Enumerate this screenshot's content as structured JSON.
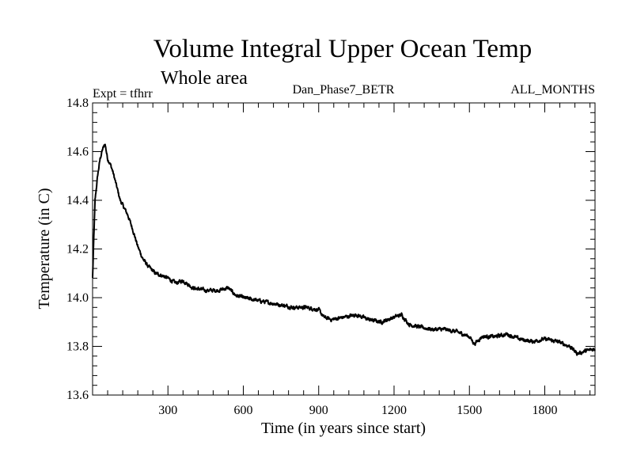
{
  "chart_data": {
    "type": "line",
    "title": "Volume Integral Upper Ocean Temp",
    "subtitle": "Whole area",
    "expt_label": "Expt = tfhrr",
    "run_label": "Dan_Phase7_BETR",
    "period_label": "ALL_MONTHS",
    "xlabel": "Time (in years since start)",
    "ylabel": "Temperature (in C)",
    "xlim": [
      0,
      2000
    ],
    "ylim": [
      13.6,
      14.8
    ],
    "xticks": [
      {
        "value": 300,
        "label": "300"
      },
      {
        "value": 600,
        "label": "600"
      },
      {
        "value": 900,
        "label": "900"
      },
      {
        "value": 1200,
        "label": "1200"
      },
      {
        "value": 1500,
        "label": "1500"
      },
      {
        "value": 1800,
        "label": "1800"
      }
    ],
    "yticks": [
      {
        "value": 13.6,
        "label": "13.6"
      },
      {
        "value": 13.8,
        "label": "13.8"
      },
      {
        "value": 14.0,
        "label": "14.0"
      },
      {
        "value": 14.2,
        "label": "14.2"
      },
      {
        "value": 14.4,
        "label": "14.4"
      },
      {
        "value": 14.6,
        "label": "14.6"
      },
      {
        "value": 14.8,
        "label": "14.8"
      }
    ],
    "grid": false,
    "series": [
      {
        "name": "Volume Integral Upper Ocean Temp",
        "x": [
          0,
          5,
          10,
          20,
          30,
          40,
          50,
          55,
          60,
          70,
          80,
          90,
          100,
          110,
          120,
          130,
          140,
          160,
          180,
          200,
          220,
          250,
          280,
          300,
          330,
          360,
          400,
          450,
          500,
          540,
          570,
          600,
          650,
          700,
          750,
          800,
          850,
          900,
          920,
          950,
          1000,
          1050,
          1100,
          1150,
          1200,
          1230,
          1260,
          1300,
          1350,
          1400,
          1450,
          1500,
          1520,
          1550,
          1600,
          1650,
          1700,
          1750,
          1800,
          1850,
          1900,
          1930,
          1960,
          2000
        ],
        "values": [
          14.08,
          14.25,
          14.4,
          14.5,
          14.57,
          14.61,
          14.63,
          14.6,
          14.57,
          14.55,
          14.52,
          14.48,
          14.44,
          14.4,
          14.38,
          14.36,
          14.34,
          14.28,
          14.21,
          14.16,
          14.13,
          14.1,
          14.09,
          14.08,
          14.06,
          14.07,
          14.04,
          14.03,
          14.03,
          14.04,
          14.01,
          14.0,
          13.99,
          13.98,
          13.97,
          13.96,
          13.96,
          13.95,
          13.92,
          13.91,
          13.92,
          13.93,
          13.91,
          13.9,
          13.92,
          13.93,
          13.89,
          13.88,
          13.87,
          13.87,
          13.86,
          13.84,
          13.81,
          13.84,
          13.84,
          13.85,
          13.83,
          13.82,
          13.83,
          13.82,
          13.8,
          13.77,
          13.78,
          13.79
        ]
      }
    ]
  }
}
